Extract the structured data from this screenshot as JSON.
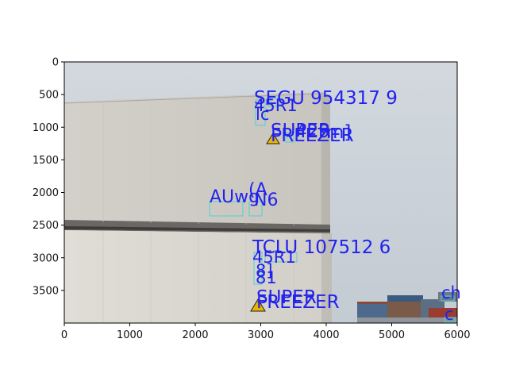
{
  "axes": {
    "x_ticks": [
      "0",
      "1000",
      "2000",
      "3000",
      "4000",
      "5000",
      "6000"
    ],
    "y_ticks": [
      "0",
      "500",
      "1000",
      "1500",
      "2000",
      "2500",
      "3000",
      "3500"
    ],
    "xlim": [
      0,
      6000
    ],
    "ylim": [
      4000,
      0
    ]
  },
  "scene": {
    "description_colors": {
      "sky": "#c9d1d8",
      "container": "#d8d6d0",
      "ground": "#9aa0a6",
      "annotation": "#2222ee",
      "box": "#4fd0d0"
    }
  },
  "labels": {
    "top_id": "SEGU 954317 9",
    "top_45r1": "45R1",
    "top_lc": "lc",
    "top_m": "m]",
    "top_super_a": "SUPER",
    "top_freezer_a": "FREEZER",
    "top_429": "429",
    "top_super_b": "SUPER",
    "top_a": "(A",
    "top_auwg": "AUwg",
    "top_n6": "N6",
    "bottom_id": "TCLU 107512 6",
    "bottom_45r1": "45R1",
    "bottom_8": "8]",
    "bottom_81": "81",
    "bottom_super": "SUPER",
    "bottom_freezer": "FREEZER",
    "right_ch": "ch",
    "right_c": "c"
  }
}
